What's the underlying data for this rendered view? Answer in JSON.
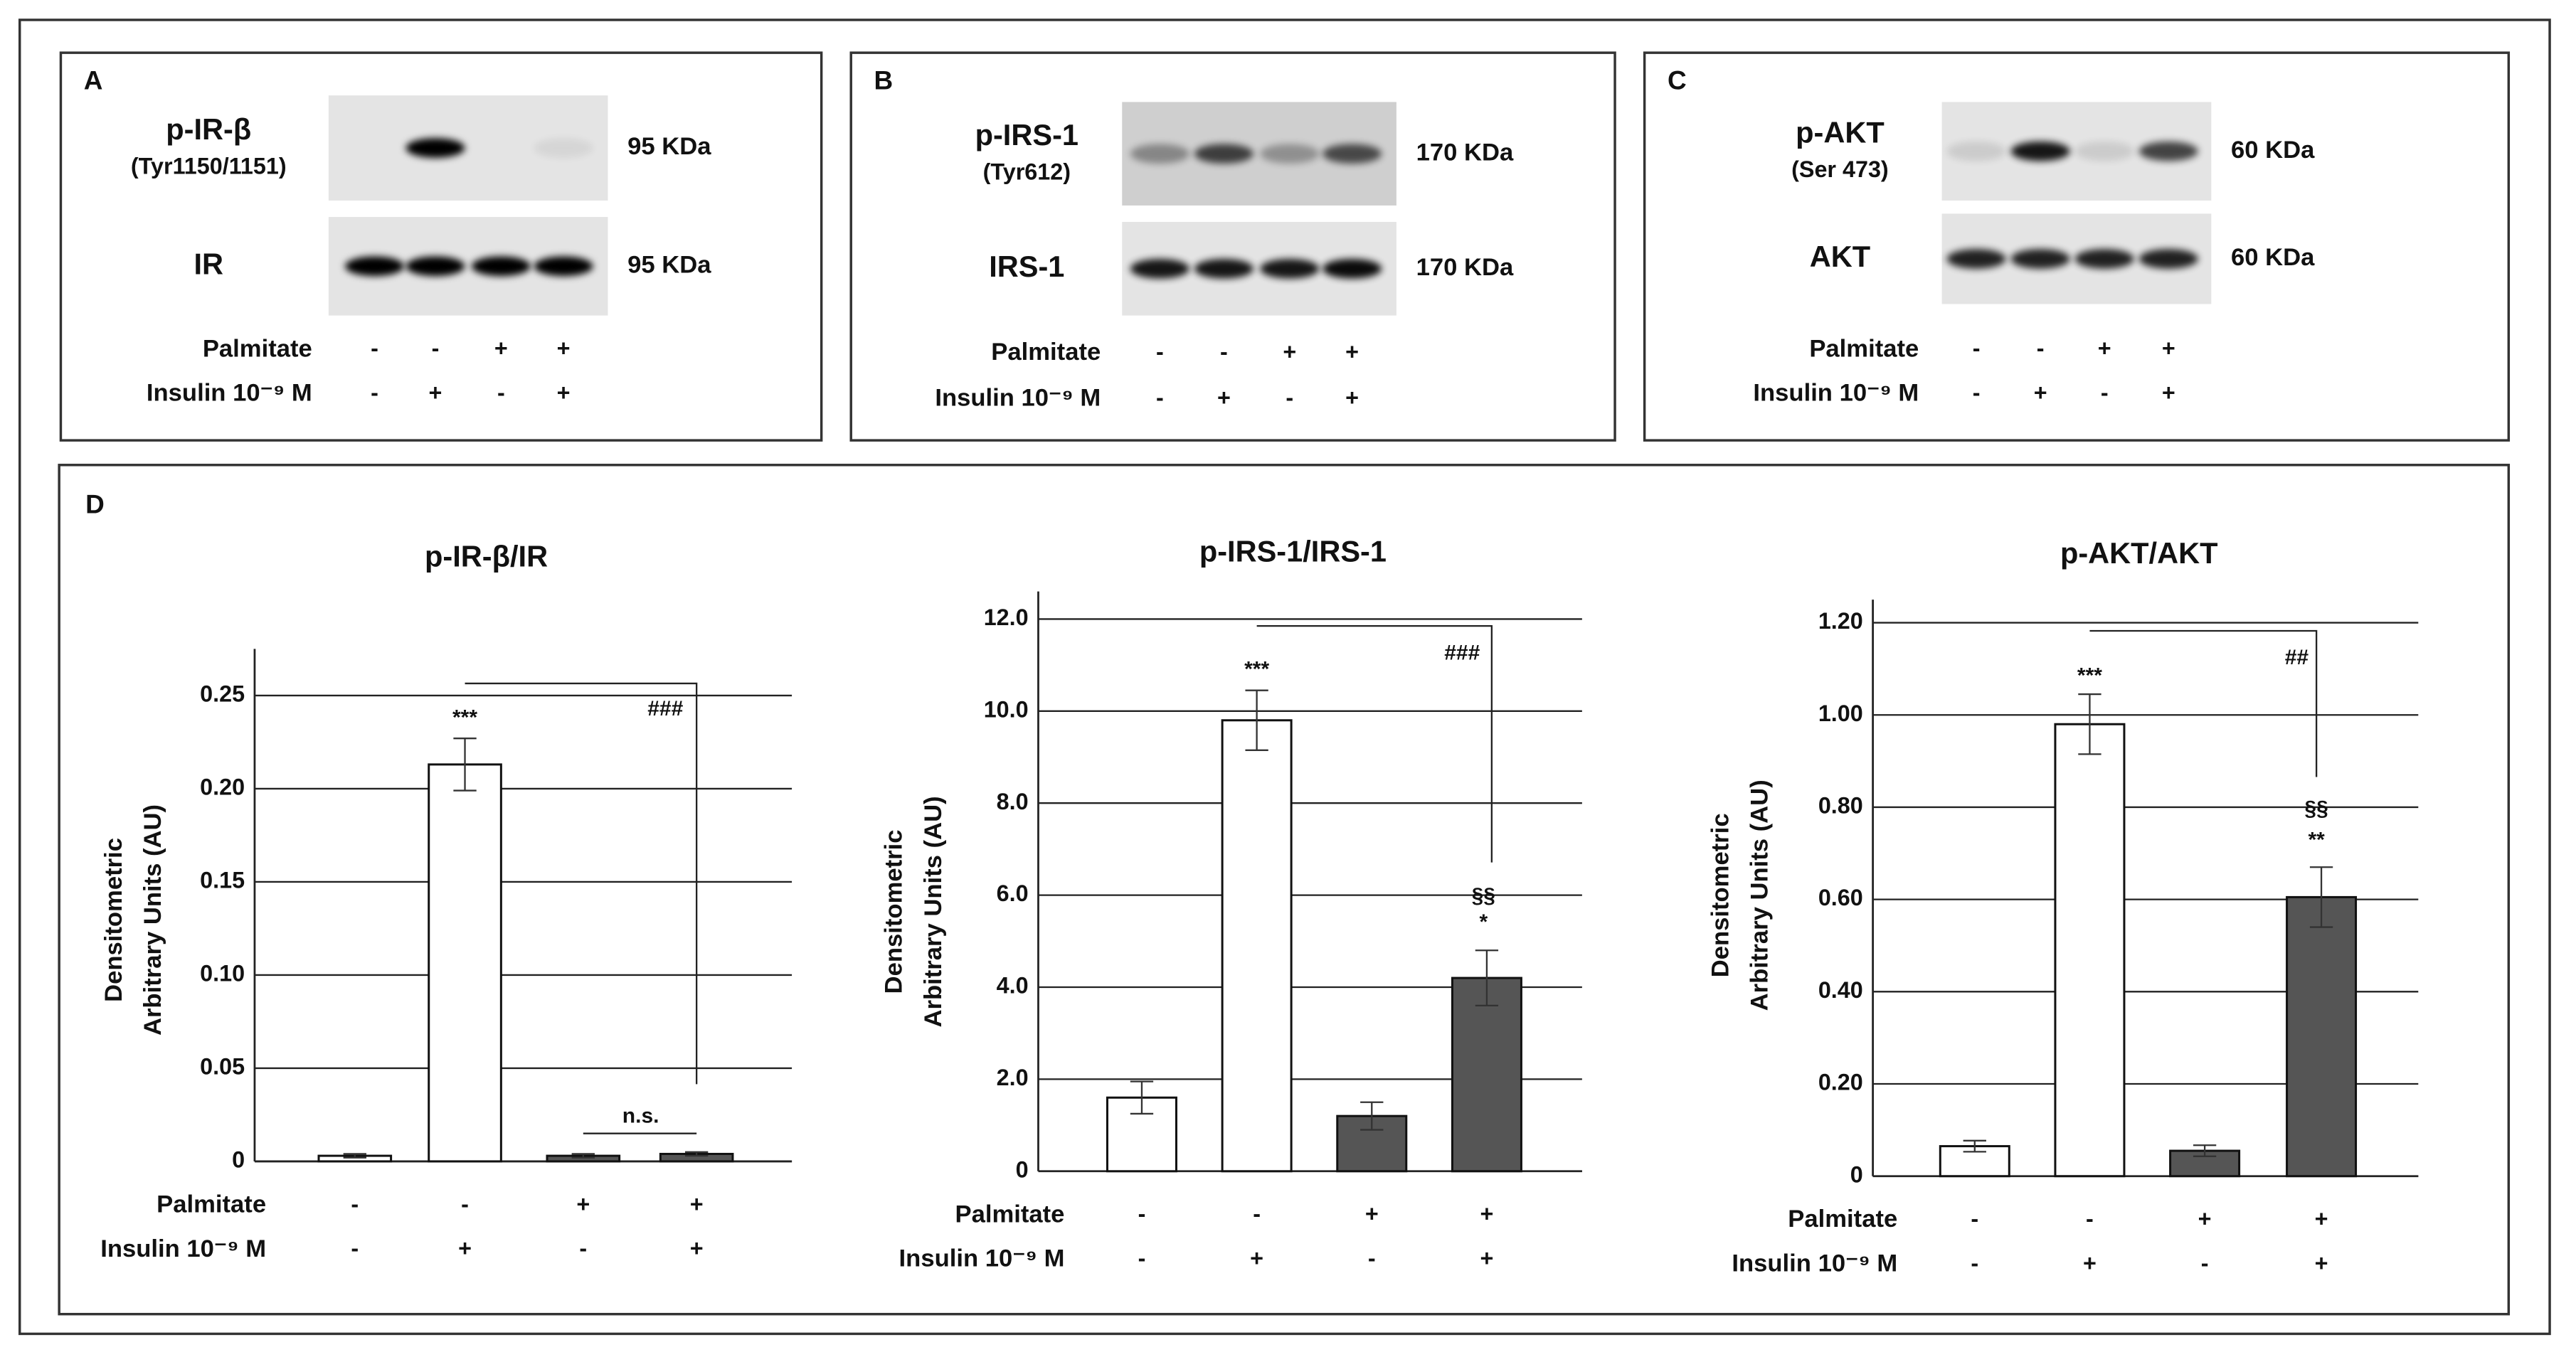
{
  "panels": [
    {
      "letter": "A",
      "blots": [
        {
          "label": "p-IR-β",
          "sublabel": "(Tyr1150/1151)",
          "size": "95 KDa"
        },
        {
          "label": "IR",
          "size": "95 KDa"
        }
      ],
      "rows": [
        {
          "name": "Palmitate",
          "signs": [
            "-",
            "-",
            "+",
            "+"
          ]
        },
        {
          "name": "Insulin 10⁻⁹ M",
          "signs": [
            "-",
            "+",
            "-",
            "+"
          ]
        }
      ]
    },
    {
      "letter": "B",
      "blots": [
        {
          "label": "p-IRS-1",
          "sublabel": "(Tyr612)",
          "size": "170 KDa"
        },
        {
          "label": "IRS-1",
          "size": "170 KDa"
        }
      ],
      "rows": [
        {
          "name": "Palmitate",
          "signs": [
            "-",
            "-",
            "+",
            "+"
          ]
        },
        {
          "name": "Insulin 10⁻⁹ M",
          "signs": [
            "-",
            "+",
            "-",
            "+"
          ]
        }
      ]
    },
    {
      "letter": "C",
      "blots": [
        {
          "label": "p-AKT",
          "sublabel": "(Ser 473)",
          "size": "60 KDa"
        },
        {
          "label": "AKT",
          "size": "60 KDa"
        }
      ],
      "rows": [
        {
          "name": "Palmitate",
          "signs": [
            "-",
            "-",
            "+",
            "+"
          ]
        },
        {
          "name": "Insulin 10⁻⁹ M",
          "signs": [
            "-",
            "+",
            "-",
            "+"
          ]
        }
      ]
    }
  ],
  "panel_d_letter": "D",
  "chart_data": [
    {
      "type": "bar",
      "title": "p-IR-β/IR",
      "ylabel": [
        "Densitometric",
        "Arbitrary Units (AU)"
      ],
      "values": [
        0.003,
        0.213,
        0.003,
        0.004
      ],
      "errors": [
        0.001,
        0.014,
        0.001,
        0.001
      ],
      "colors": [
        "#ffffff",
        "#ffffff",
        "#555555",
        "#555555"
      ],
      "ylim": [
        0,
        0.275
      ],
      "yticks": [
        0,
        0.05,
        {
          "value": 0.1,
          "label": "0.10"
        },
        0.15,
        {
          "value": 0.2,
          "label": "0.20"
        },
        0.25
      ],
      "grid": true,
      "annotations": [
        "***",
        "n.s.",
        "###"
      ],
      "rows": [
        {
          "name": "Palmitate",
          "signs": [
            "-",
            "-",
            "+",
            "+"
          ]
        },
        {
          "name": "Insulin 10⁻⁹ M",
          "signs": [
            "-",
            "+",
            "-",
            "+"
          ]
        }
      ]
    },
    {
      "type": "bar",
      "title": "p-IRS-1/IRS-1",
      "ylabel": [
        "Densitometric",
        "Arbitrary Units (AU)"
      ],
      "values": [
        1.6,
        9.8,
        1.2,
        4.2
      ],
      "errors": [
        0.35,
        0.65,
        0.3,
        0.6
      ],
      "colors": [
        "#ffffff",
        "#ffffff",
        "#555555",
        "#555555"
      ],
      "ylim": [
        0,
        12.6
      ],
      "yticks": [
        0,
        {
          "value": 2,
          "label": "2.0"
        },
        {
          "value": 4,
          "label": "4.0"
        },
        {
          "value": 6,
          "label": "6.0"
        },
        {
          "value": 8,
          "label": "8.0"
        },
        {
          "value": 10,
          "label": "10.0"
        },
        {
          "value": 12,
          "label": "12.0"
        }
      ],
      "grid": true,
      "annotations": [
        "***",
        "###",
        "§§",
        "*"
      ],
      "rows": [
        {
          "name": "Palmitate",
          "signs": [
            "-",
            "-",
            "+",
            "+"
          ]
        },
        {
          "name": "Insulin 10⁻⁹ M",
          "signs": [
            "-",
            "+",
            "-",
            "+"
          ]
        }
      ]
    },
    {
      "type": "bar",
      "title": "p-AKT/AKT",
      "ylabel": [
        "Densitometric",
        "Arbitrary Units (AU)"
      ],
      "values": [
        0.065,
        0.98,
        0.055,
        0.605
      ],
      "errors": [
        0.012,
        0.065,
        0.012,
        0.065
      ],
      "colors": [
        "#ffffff",
        "#ffffff",
        "#555555",
        "#555555"
      ],
      "ylim": [
        0,
        1.25
      ],
      "yticks": [
        0,
        {
          "value": 0.2,
          "label": "0.20"
        },
        {
          "value": 0.4,
          "label": "0.40"
        },
        {
          "value": 0.6,
          "label": "0.60"
        },
        {
          "value": 0.8,
          "label": "0.80"
        },
        {
          "value": 1,
          "label": "1.00"
        },
        {
          "value": 1.2,
          "label": "1.20"
        }
      ],
      "grid": true,
      "annotations": [
        "***",
        "##",
        "§§",
        "**"
      ],
      "rows": [
        {
          "name": "Palmitate",
          "signs": [
            "-",
            "-",
            "+",
            "+"
          ]
        },
        {
          "name": "Insulin 10⁻⁹ M",
          "signs": [
            "-",
            "+",
            "-",
            "+"
          ]
        }
      ]
    }
  ]
}
